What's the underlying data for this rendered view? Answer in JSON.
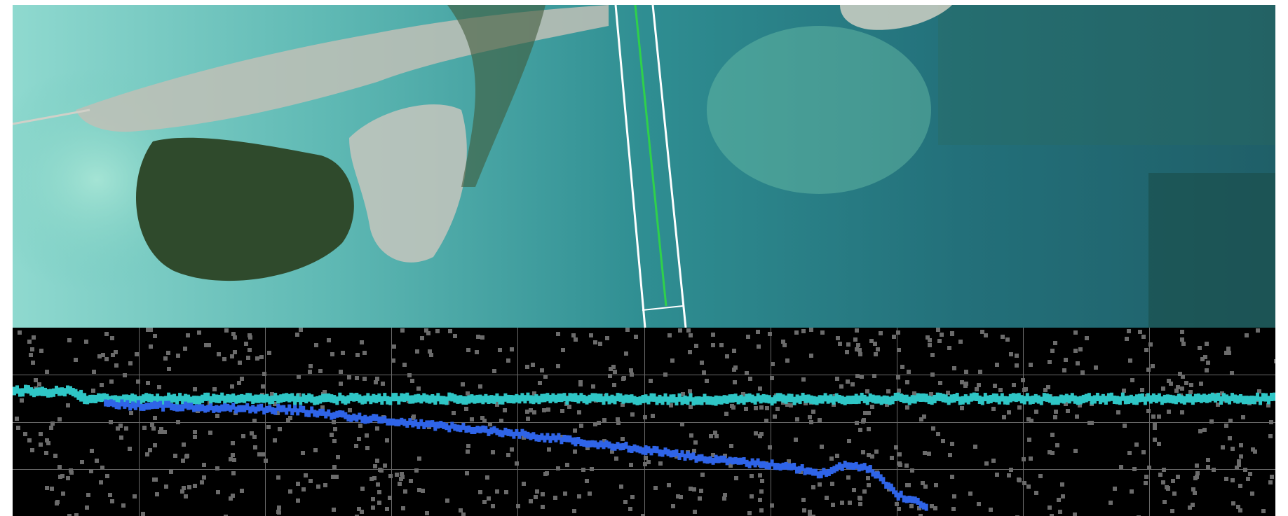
{
  "view": {
    "panels": [
      "satellite-image",
      "photon-scatter-plot"
    ]
  },
  "colors": {
    "water_shallow": "#7ecfc6",
    "water_mid": "#2f8e92",
    "water_deep": "#1f5f68",
    "land": "#2f4a2c",
    "urban": "#c9c9c2",
    "track": "#ffffff",
    "surface_series": "#2fc6c6",
    "bottom_series": "#2f64e8",
    "noise": "#6b6b6b",
    "plot_bg": "#000000",
    "grid": "#6a6a6a"
  },
  "chart_data": {
    "type": "scatter",
    "grid": true,
    "x_grid_count": 10,
    "y_grid_count": 4,
    "xlim": [
      0,
      1800
    ],
    "ylim": [
      0,
      270
    ],
    "series": [
      {
        "role": "surface",
        "x": [
          0,
          40,
          80,
          95,
          100,
          200,
          400,
          600,
          800,
          1000,
          1200,
          1400,
          1600,
          1800
        ],
        "y": [
          180,
          178,
          180,
          172,
          168,
          168,
          168,
          168,
          168,
          167,
          168,
          168,
          168,
          168
        ]
      },
      {
        "role": "bottom",
        "x": [
          130,
          200,
          300,
          400,
          500,
          600,
          700,
          800,
          900,
          1000,
          1100,
          1150,
          1180,
          1220,
          1250,
          1260,
          1300
        ],
        "y": [
          160,
          158,
          155,
          152,
          140,
          130,
          120,
          108,
          95,
          80,
          72,
          60,
          72,
          68,
          40,
          30,
          15
        ]
      }
    ]
  }
}
